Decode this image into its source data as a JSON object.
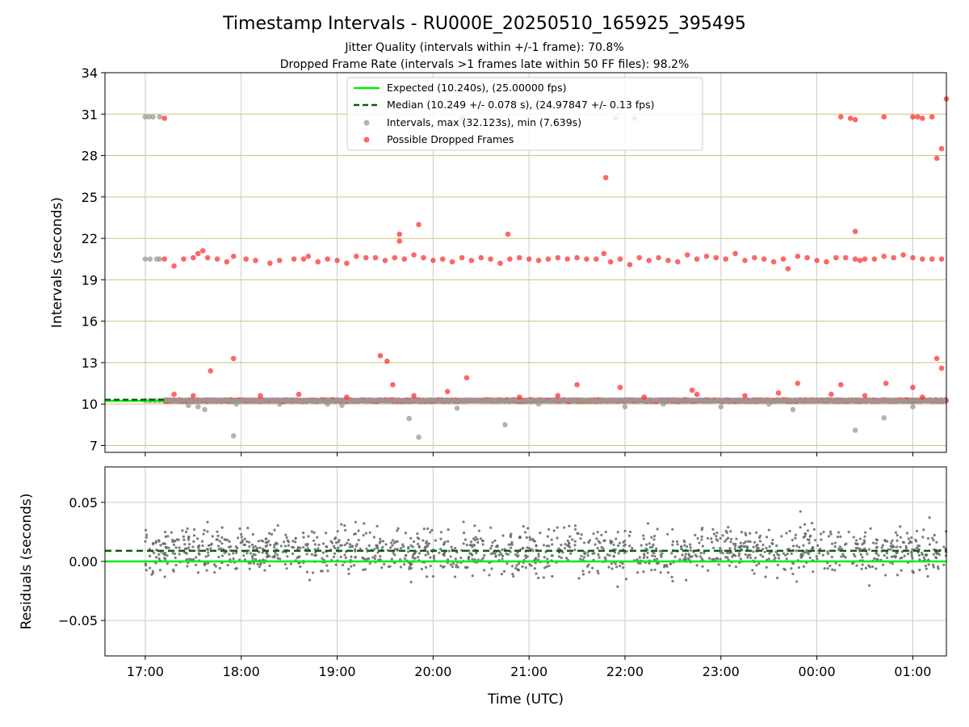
{
  "chart_data": [
    {
      "type": "scatter",
      "title": "Timestamp Intervals - RU000E_20250510_165925_395495",
      "subtitle_1": "Jitter Quality (intervals within +/-1 frame): 70.8%",
      "subtitle_2": "Dropped Frame Rate (intervals >1 frames late within 50 FF files): 98.2%",
      "ylabel": "Intervals (seconds)",
      "ylim": [
        6.5,
        34
      ],
      "yticks": [
        "7",
        "10",
        "13",
        "16",
        "19",
        "22",
        "25",
        "28",
        "31",
        "34"
      ],
      "xlim_hours": [
        16.58,
        25.35
      ],
      "legend_position": "upper center",
      "legend": [
        {
          "label": "Expected (10.240s), (25.00000 fps)",
          "style": "solid",
          "color": "#00ee00"
        },
        {
          "label": "Median (10.249 +/- 0.078 s), (24.97847 +/- 0.13 fps)",
          "style": "dashed",
          "color": "#006400"
        },
        {
          "label": "Intervals, max (32.123s), min (7.639s)",
          "style": "dot",
          "color": "#999999"
        },
        {
          "label": "Possible Dropped Frames",
          "style": "dot",
          "color": "#ff3333"
        }
      ],
      "expected_interval": 10.24,
      "median_interval": 10.249,
      "grey_points": [
        [
          17.0,
          30.8
        ],
        [
          17.04,
          30.8
        ],
        [
          17.08,
          30.8
        ],
        [
          17.15,
          30.8
        ],
        [
          17.0,
          20.5
        ],
        [
          17.05,
          20.5
        ],
        [
          17.12,
          20.5
        ],
        [
          17.15,
          20.5
        ],
        [
          17.0,
          10.25
        ],
        [
          17.05,
          10.25
        ],
        [
          17.1,
          10.25
        ],
        [
          17.15,
          10.25
        ],
        [
          17.45,
          9.9
        ],
        [
          17.55,
          9.8
        ],
        [
          17.62,
          9.6
        ],
        [
          17.92,
          7.7
        ],
        [
          17.95,
          10.0
        ],
        [
          18.4,
          10.0
        ],
        [
          18.9,
          10.0
        ],
        [
          19.05,
          9.9
        ],
        [
          19.75,
          8.95
        ],
        [
          19.85,
          7.6
        ],
        [
          20.25,
          9.7
        ],
        [
          20.75,
          8.5
        ],
        [
          21.1,
          10.0
        ],
        [
          22.0,
          9.8
        ],
        [
          22.4,
          10.0
        ],
        [
          23.0,
          9.8
        ],
        [
          23.5,
          10.0
        ],
        [
          23.75,
          9.6
        ],
        [
          24.4,
          8.1
        ],
        [
          24.7,
          9.0
        ],
        [
          25.0,
          9.8
        ]
      ],
      "red_points": [
        [
          17.2,
          30.7
        ],
        [
          17.2,
          20.5
        ],
        [
          17.3,
          20.0
        ],
        [
          17.4,
          20.5
        ],
        [
          17.5,
          20.6
        ],
        [
          17.55,
          20.9
        ],
        [
          17.6,
          21.1
        ],
        [
          17.65,
          20.6
        ],
        [
          17.75,
          20.5
        ],
        [
          17.85,
          20.3
        ],
        [
          17.92,
          20.7
        ],
        [
          18.05,
          20.5
        ],
        [
          18.15,
          20.4
        ],
        [
          18.3,
          20.2
        ],
        [
          18.4,
          20.4
        ],
        [
          18.55,
          20.5
        ],
        [
          18.65,
          20.5
        ],
        [
          18.7,
          20.7
        ],
        [
          18.8,
          20.3
        ],
        [
          18.9,
          20.5
        ],
        [
          19.0,
          20.4
        ],
        [
          19.1,
          20.2
        ],
        [
          19.2,
          20.7
        ],
        [
          19.3,
          20.6
        ],
        [
          19.4,
          20.6
        ],
        [
          19.5,
          20.4
        ],
        [
          19.6,
          20.6
        ],
        [
          19.65,
          21.8
        ],
        [
          19.7,
          20.5
        ],
        [
          19.8,
          20.8
        ],
        [
          19.9,
          20.6
        ],
        [
          20.0,
          20.4
        ],
        [
          20.1,
          20.5
        ],
        [
          20.2,
          20.3
        ],
        [
          20.3,
          20.6
        ],
        [
          20.4,
          20.4
        ],
        [
          20.5,
          20.6
        ],
        [
          20.6,
          20.5
        ],
        [
          20.7,
          20.2
        ],
        [
          20.8,
          20.5
        ],
        [
          20.9,
          20.6
        ],
        [
          21.0,
          20.5
        ],
        [
          21.1,
          20.4
        ],
        [
          21.2,
          20.5
        ],
        [
          21.3,
          20.6
        ],
        [
          21.4,
          20.5
        ],
        [
          21.5,
          20.6
        ],
        [
          21.6,
          20.5
        ],
        [
          21.7,
          20.5
        ],
        [
          21.78,
          20.9
        ],
        [
          21.85,
          20.3
        ],
        [
          21.95,
          20.5
        ],
        [
          22.05,
          20.1
        ],
        [
          22.15,
          20.6
        ],
        [
          22.25,
          20.4
        ],
        [
          22.35,
          20.6
        ],
        [
          22.45,
          20.4
        ],
        [
          22.55,
          20.3
        ],
        [
          22.65,
          20.8
        ],
        [
          22.75,
          20.5
        ],
        [
          22.85,
          20.7
        ],
        [
          22.95,
          20.6
        ],
        [
          23.05,
          20.5
        ],
        [
          23.15,
          20.9
        ],
        [
          23.25,
          20.4
        ],
        [
          23.35,
          20.6
        ],
        [
          23.45,
          20.5
        ],
        [
          23.55,
          20.3
        ],
        [
          23.65,
          20.5
        ],
        [
          23.7,
          19.8
        ],
        [
          23.8,
          20.7
        ],
        [
          23.9,
          20.6
        ],
        [
          24.0,
          20.4
        ],
        [
          24.1,
          20.3
        ],
        [
          24.2,
          20.6
        ],
        [
          24.3,
          20.6
        ],
        [
          24.4,
          20.5
        ],
        [
          24.45,
          20.4
        ],
        [
          24.5,
          20.5
        ],
        [
          24.6,
          20.5
        ],
        [
          24.7,
          20.7
        ],
        [
          24.8,
          20.6
        ],
        [
          24.9,
          20.8
        ],
        [
          25.0,
          20.6
        ],
        [
          25.1,
          20.5
        ],
        [
          25.2,
          20.5
        ],
        [
          25.3,
          20.5
        ],
        [
          19.65,
          22.3
        ],
        [
          19.85,
          23.0
        ],
        [
          20.78,
          22.3
        ],
        [
          21.8,
          26.4
        ],
        [
          21.9,
          30.7
        ],
        [
          22.1,
          30.7
        ],
        [
          20.3,
          30.7
        ],
        [
          24.25,
          30.8
        ],
        [
          24.35,
          30.7
        ],
        [
          24.4,
          30.6
        ],
        [
          24.7,
          30.8
        ],
        [
          25.0,
          30.8
        ],
        [
          25.05,
          30.8
        ],
        [
          25.1,
          30.7
        ],
        [
          25.2,
          30.8
        ],
        [
          25.25,
          27.8
        ],
        [
          25.3,
          28.5
        ],
        [
          25.35,
          32.1
        ],
        [
          24.4,
          22.5
        ],
        [
          17.68,
          12.4
        ],
        [
          17.92,
          13.3
        ],
        [
          19.45,
          13.5
        ],
        [
          19.52,
          13.1
        ],
        [
          19.58,
          11.4
        ],
        [
          20.35,
          11.9
        ],
        [
          21.5,
          11.4
        ],
        [
          21.95,
          11.2
        ],
        [
          22.7,
          11.0
        ],
        [
          23.8,
          11.5
        ],
        [
          24.25,
          11.4
        ],
        [
          24.72,
          11.5
        ],
        [
          25.0,
          11.2
        ],
        [
          25.25,
          13.3
        ],
        [
          25.3,
          12.6
        ],
        [
          17.3,
          10.7
        ],
        [
          17.5,
          10.6
        ],
        [
          18.2,
          10.6
        ],
        [
          18.6,
          10.7
        ],
        [
          19.1,
          10.5
        ],
        [
          19.8,
          10.6
        ],
        [
          20.15,
          10.9
        ],
        [
          20.9,
          10.5
        ],
        [
          21.3,
          10.6
        ],
        [
          22.2,
          10.5
        ],
        [
          22.75,
          10.7
        ],
        [
          23.25,
          10.6
        ],
        [
          23.6,
          10.8
        ],
        [
          24.15,
          10.7
        ],
        [
          24.5,
          10.6
        ],
        [
          25.1,
          10.5
        ]
      ],
      "red_band": {
        "x_range": [
          17.2,
          25.35
        ],
        "y": 10.25
      }
    },
    {
      "type": "scatter",
      "ylabel": "Residuals (seconds)",
      "xlabel": "Time (UTC)",
      "ylim": [
        -0.08,
        0.08
      ],
      "yticks": [
        "−0.05",
        "0.00",
        "0.05"
      ],
      "xticks": [
        "17:00",
        "18:00",
        "19:00",
        "20:00",
        "21:00",
        "22:00",
        "23:00",
        "00:00",
        "01:00"
      ],
      "xtick_hours": [
        17,
        18,
        19,
        20,
        21,
        22,
        23,
        24,
        25
      ],
      "expected_residual": 0.0,
      "median_residual": 0.009,
      "residual_points_note_count": 1400
    }
  ]
}
